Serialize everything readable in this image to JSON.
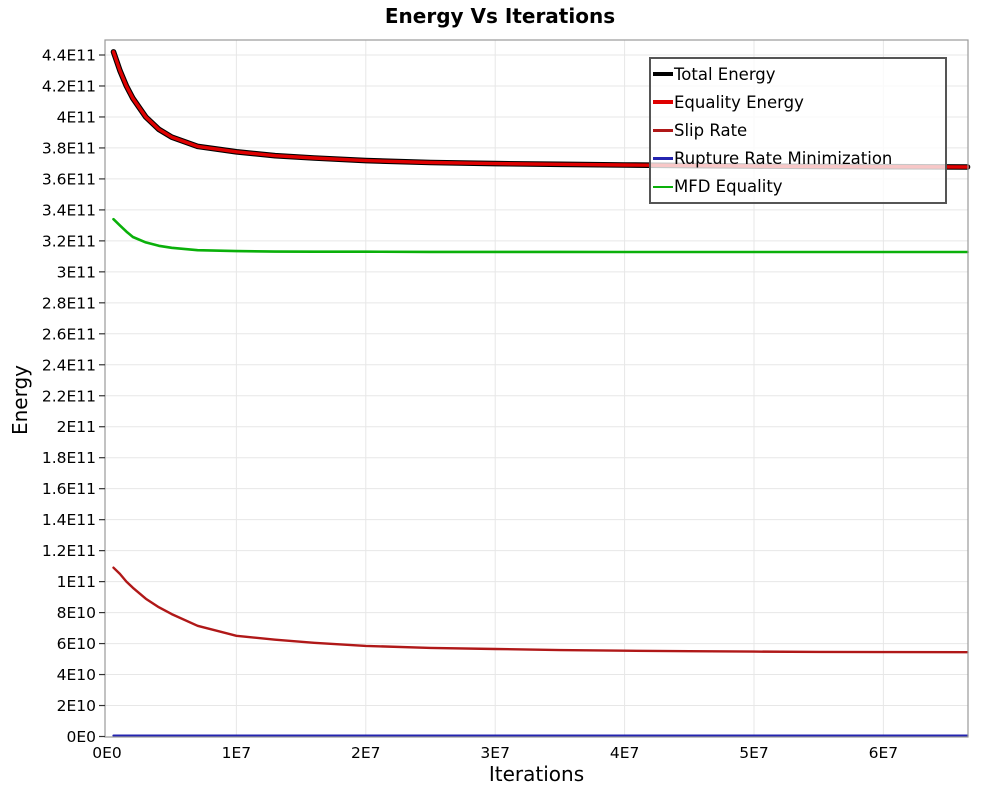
{
  "chart_data": {
    "type": "line",
    "title": "Energy Vs Iterations",
    "xlabel": "Iterations",
    "ylabel": "Energy",
    "grid": true,
    "legend_position": "top-right",
    "palette": {
      "background": "#ffffff",
      "grid": "#e7e7e7",
      "plot_border": "#9a9a9a",
      "tick_text": "#000000"
    },
    "x_axis": {
      "min": 0,
      "max": 66500000,
      "tick_values": [
        0,
        10000000,
        20000000,
        30000000,
        40000000,
        50000000,
        60000000
      ],
      "tick_labels": [
        "0E0",
        "1E7",
        "2E7",
        "3E7",
        "4E7",
        "5E7",
        "6E7"
      ]
    },
    "y_axis": {
      "min": 0,
      "max": 449700000000,
      "tick_values": [
        0,
        20000000000.0,
        40000000000.0,
        60000000000.0,
        80000000000.0,
        100000000000.0,
        120000000000.0,
        140000000000.0,
        160000000000.0,
        180000000000.0,
        200000000000.0,
        220000000000.0,
        240000000000.0,
        260000000000.0,
        280000000000.0,
        300000000000.0,
        320000000000.0,
        340000000000.0,
        360000000000.0,
        380000000000.0,
        400000000000.0,
        420000000000.0,
        440000000000.0
      ],
      "tick_labels": [
        "0E0",
        "2E10",
        "4E10",
        "6E10",
        "8E10",
        "1E11",
        "1.2E11",
        "1.4E11",
        "1.6E11",
        "1.8E11",
        "2E11",
        "2.2E11",
        "2.4E11",
        "2.6E11",
        "2.8E11",
        "3E11",
        "3.2E11",
        "3.4E11",
        "3.6E11",
        "3.8E11",
        "4E11",
        "4.2E11",
        "4.4E11"
      ]
    },
    "x": [
      500000,
      1000000,
      1500000,
      2000000,
      3000000,
      4000000,
      5000000,
      7000000,
      10000000,
      13000000,
      16000000,
      20000000,
      25000000,
      30000000,
      35000000,
      40000000,
      45000000,
      50000000,
      55000000,
      60000000,
      66500000
    ],
    "series": [
      {
        "name": "Total Energy",
        "color": "#000000",
        "line_width": 5.6,
        "legend_swatch_height": 4.5,
        "y": [
          442000000000.0,
          430000000000.0,
          420000000000.0,
          412000000000.0,
          400000000000.0,
          392000000000.0,
          387000000000.0,
          381000000000.0,
          377500000000.0,
          375000000000.0,
          373500000000.0,
          371800000000.0,
          370600000000.0,
          369900000000.0,
          369400000000.0,
          369000000000.0,
          368600000000.0,
          368300000000.0,
          368100000000.0,
          367900000000.0,
          367700000000.0
        ]
      },
      {
        "name": "Equality Energy",
        "color": "#df0000",
        "line_width": 3.4,
        "legend_swatch_height": 4,
        "y": [
          442000000000.0,
          430000000000.0,
          420000000000.0,
          412000000000.0,
          400000000000.0,
          392000000000.0,
          387000000000.0,
          381000000000.0,
          377500000000.0,
          375000000000.0,
          373500000000.0,
          371800000000.0,
          370600000000.0,
          369900000000.0,
          369400000000.0,
          369000000000.0,
          368600000000.0,
          368300000000.0,
          368100000000.0,
          367900000000.0,
          367700000000.0
        ]
      },
      {
        "name": "Slip Rate",
        "color": "#b01818",
        "line_width": 2.4,
        "legend_swatch_height": 2.5,
        "y": [
          109000000000.0,
          105000000000.0,
          100000000000.0,
          96000000000.0,
          89000000000.0,
          83500000000.0,
          79000000000.0,
          71500000000.0,
          65000000000.0,
          62500000000.0,
          60500000000.0,
          58500000000.0,
          57200000000.0,
          56500000000.0,
          55800000000.0,
          55400000000.0,
          55100000000.0,
          54800000000.0,
          54600000000.0,
          54500000000.0,
          54400000000.0
        ]
      },
      {
        "name": "Rupture Rate Minimization",
        "color": "#2424b0",
        "line_width": 2.2,
        "legend_swatch_height": 2.5,
        "y": [
          600000000.0,
          600000000.0,
          600000000.0,
          600000000.0,
          600000000.0,
          600000000.0,
          600000000.0,
          600000000.0,
          600000000.0,
          600000000.0,
          600000000.0,
          600000000.0,
          600000000.0,
          600000000.0,
          600000000.0,
          600000000.0,
          600000000.0,
          600000000.0,
          600000000.0,
          600000000.0,
          600000000.0
        ]
      },
      {
        "name": "MFD Equality",
        "color": "#0ab00a",
        "line_width": 2.6,
        "legend_swatch_height": 2.5,
        "y": [
          334000000000.0,
          330000000000.0,
          326000000000.0,
          322500000000.0,
          319000000000.0,
          316800000000.0,
          315500000000.0,
          314000000000.0,
          313400000000.0,
          313100000000.0,
          313000000000.0,
          313000000000.0,
          312900000000.0,
          312900000000.0,
          312900000000.0,
          312800000000.0,
          312800000000.0,
          312800000000.0,
          312800000000.0,
          312800000000.0,
          312800000000.0
        ]
      }
    ]
  }
}
